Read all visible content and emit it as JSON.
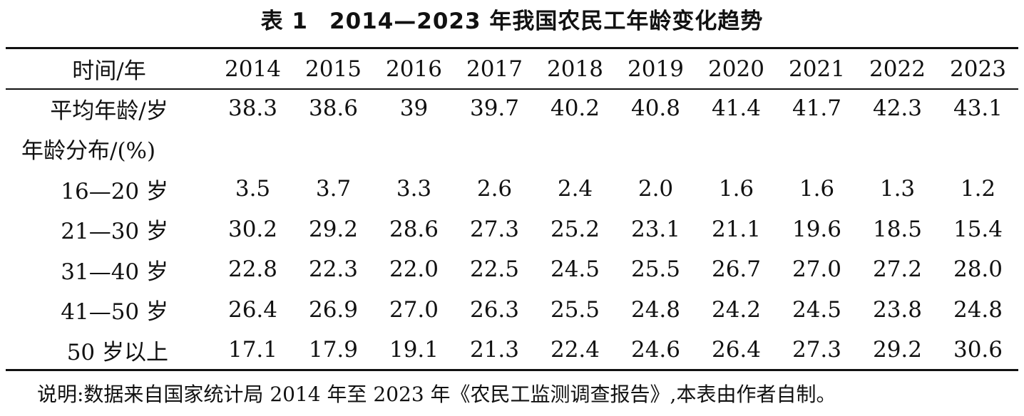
{
  "table_title": {
    "number": "表 1",
    "text": "2014—2023 年我国农民工年龄变化趋势"
  },
  "columns": {
    "header_label": "时间/年",
    "years": [
      "2014",
      "2015",
      "2016",
      "2017",
      "2018",
      "2019",
      "2020",
      "2021",
      "2022",
      "2023"
    ]
  },
  "rows": [
    {
      "label": "平均年龄/岁",
      "values": [
        "38.3",
        "38.6",
        "39",
        "39.7",
        "40.2",
        "40.8",
        "41.4",
        "41.7",
        "42.3",
        "43.1"
      ]
    },
    {
      "label": "年龄分布/(%)",
      "values": [
        "",
        "",
        "",
        "",
        "",
        "",
        "",
        "",
        "",
        ""
      ]
    },
    {
      "label": "16—20 岁",
      "values": [
        "3.5",
        "3.7",
        "3.3",
        "2.6",
        "2.4",
        "2.0",
        "1.6",
        "1.6",
        "1.3",
        "1.2"
      ]
    },
    {
      "label": "21—30 岁",
      "values": [
        "30.2",
        "29.2",
        "28.6",
        "27.3",
        "25.2",
        "23.1",
        "21.1",
        "19.6",
        "18.5",
        "15.4"
      ]
    },
    {
      "label": "31—40 岁",
      "values": [
        "22.8",
        "22.3",
        "22.0",
        "22.5",
        "24.5",
        "25.5",
        "26.7",
        "27.0",
        "27.2",
        "28.0"
      ]
    },
    {
      "label": "41—50 岁",
      "values": [
        "26.4",
        "26.9",
        "27.0",
        "26.3",
        "25.5",
        "24.8",
        "24.2",
        "24.5",
        "23.8",
        "24.8"
      ]
    },
    {
      "label": "50 岁以上",
      "values": [
        "17.1",
        "17.9",
        "19.1",
        "21.3",
        "22.4",
        "24.6",
        "26.4",
        "27.3",
        "29.2",
        "30.6"
      ]
    }
  ],
  "note": "说明:数据来自国家统计局 2014 年至 2023 年《农民工监测调查报告》,本表由作者自制。"
}
